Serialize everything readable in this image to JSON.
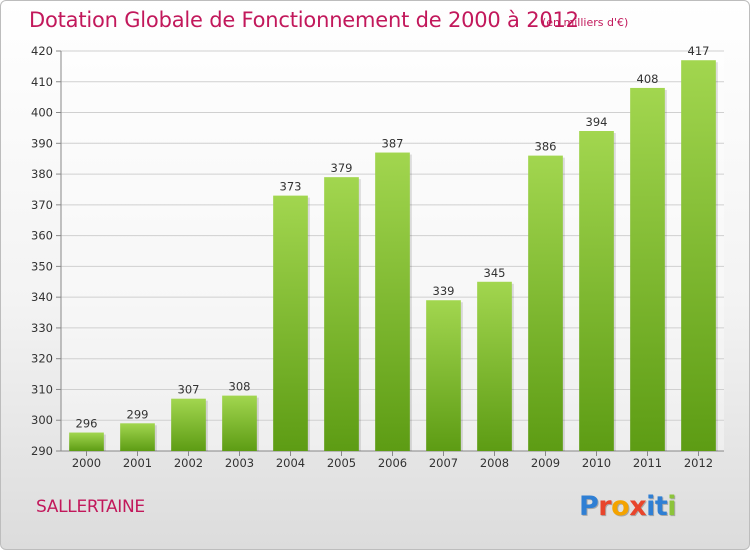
{
  "header": {
    "title": "Dotation Globale de Fonctionnement de 2000 à 2012",
    "unit": "(en milliers d'€)"
  },
  "footer": {
    "commune": "SALLERTAINE",
    "logo_text": "Proxiti"
  },
  "colors": {
    "title": "#c2185b",
    "bar_top": "#a2d64f",
    "bar_bottom": "#5d9c14",
    "logo": [
      "#2f7fd4",
      "#e8452c",
      "#f4a300",
      "#e8452c",
      "#2f7fd4",
      "#2f7fd4",
      "#8cc43a"
    ]
  },
  "chart_data": {
    "type": "bar",
    "categories": [
      "2000",
      "2001",
      "2002",
      "2003",
      "2004",
      "2005",
      "2006",
      "2007",
      "2008",
      "2009",
      "2010",
      "2011",
      "2012"
    ],
    "values": [
      296,
      299,
      307,
      308,
      373,
      379,
      387,
      339,
      345,
      386,
      394,
      408,
      417
    ],
    "ylim": [
      290,
      420
    ],
    "yticks": [
      290,
      300,
      310,
      320,
      330,
      340,
      350,
      360,
      370,
      380,
      390,
      400,
      410,
      420
    ],
    "grid": true,
    "data_labels": true
  }
}
